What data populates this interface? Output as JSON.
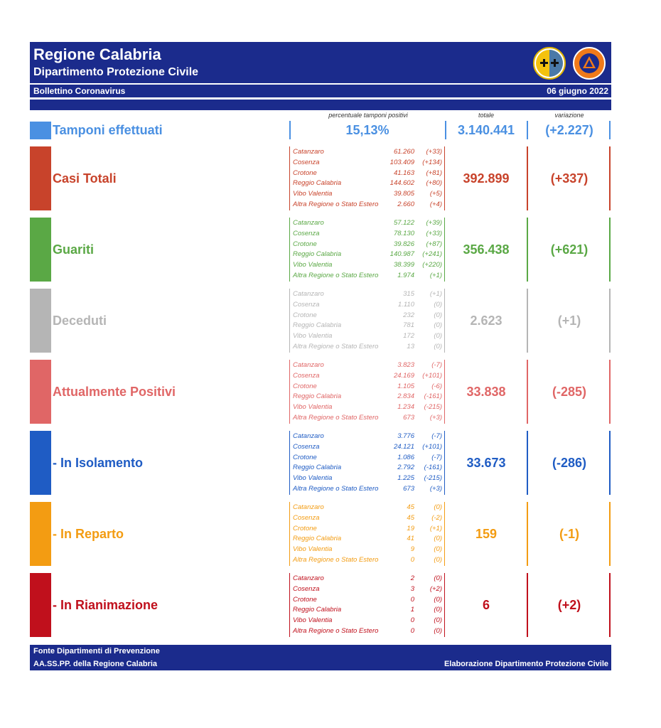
{
  "header": {
    "title": "Regione Calabria",
    "subtitle": "Dipartimento Protezione Civile",
    "bulletin": "Bollettino Coronavirus",
    "date": "06 giugno 2022"
  },
  "columns": {
    "percent": "percentuale tamponi positivi",
    "total": "totale",
    "variation": "variazione"
  },
  "tamponi": {
    "label": "Tamponi effettuati",
    "percent": "15,13%",
    "total": "3.140.441",
    "variation": "(+2.227)",
    "color": "#4a90e2"
  },
  "sections": [
    {
      "label": "Casi Totali",
      "color": "#c8432b",
      "total": "392.899",
      "variation": "(+337)",
      "rows": [
        {
          "name": "Catanzaro",
          "value": "61.260",
          "var": "(+33)"
        },
        {
          "name": "Cosenza",
          "value": "103.409",
          "var": "(+134)"
        },
        {
          "name": "Crotone",
          "value": "41.163",
          "var": "(+81)"
        },
        {
          "name": "Reggio Calabria",
          "value": "144.602",
          "var": "(+80)"
        },
        {
          "name": "Vibo Valentia",
          "value": "39.805",
          "var": "(+5)"
        },
        {
          "name": "Altra Regione o Stato Estero",
          "value": "2.660",
          "var": "(+4)"
        }
      ]
    },
    {
      "label": "Guariti",
      "color": "#5aa845",
      "total": "356.438",
      "variation": "(+621)",
      "rows": [
        {
          "name": "Catanzaro",
          "value": "57.122",
          "var": "(+39)"
        },
        {
          "name": "Cosenza",
          "value": "78.130",
          "var": "(+33)"
        },
        {
          "name": "Crotone",
          "value": "39.826",
          "var": "(+87)"
        },
        {
          "name": "Reggio Calabria",
          "value": "140.987",
          "var": "(+241)"
        },
        {
          "name": "Vibo Valentia",
          "value": "38.399",
          "var": "(+220)"
        },
        {
          "name": "Altra Regione o Stato Estero",
          "value": "1.974",
          "var": "(+1)"
        }
      ]
    },
    {
      "label": "Deceduti",
      "color": "#b5b5b5",
      "total": "2.623",
      "variation": "(+1)",
      "rows": [
        {
          "name": "Catanzaro",
          "value": "315",
          "var": "(+1)"
        },
        {
          "name": "Cosenza",
          "value": "1.110",
          "var": "(0)"
        },
        {
          "name": "Crotone",
          "value": "232",
          "var": "(0)"
        },
        {
          "name": "Reggio Calabria",
          "value": "781",
          "var": "(0)"
        },
        {
          "name": "Vibo Valentia",
          "value": "172",
          "var": "(0)"
        },
        {
          "name": "Altra Regione o Stato Estero",
          "value": "13",
          "var": "(0)"
        }
      ]
    },
    {
      "label": "Attualmente Positivi",
      "color": "#e06666",
      "total": "33.838",
      "variation": "(-285)",
      "rows": [
        {
          "name": "Catanzaro",
          "value": "3.823",
          "var": "(-7)"
        },
        {
          "name": "Cosenza",
          "value": "24.169",
          "var": "(+101)"
        },
        {
          "name": "Crotone",
          "value": "1.105",
          "var": "(-6)"
        },
        {
          "name": "Reggio Calabria",
          "value": "2.834",
          "var": "(-161)"
        },
        {
          "name": "Vibo Valentia",
          "value": "1.234",
          "var": "(-215)"
        },
        {
          "name": "Altra Regione o Stato Estero",
          "value": "673",
          "var": "(+3)"
        }
      ]
    },
    {
      "label": "- In Isolamento",
      "color": "#1f5cc4",
      "total": "33.673",
      "variation": "(-286)",
      "rows": [
        {
          "name": "Catanzaro",
          "value": "3.776",
          "var": "(-7)"
        },
        {
          "name": "Cosenza",
          "value": "24.121",
          "var": "(+101)"
        },
        {
          "name": "Crotone",
          "value": "1.086",
          "var": "(-7)"
        },
        {
          "name": "Reggio Calabria",
          "value": "2.792",
          "var": "(-161)"
        },
        {
          "name": "Vibo Valentia",
          "value": "1.225",
          "var": "(-215)"
        },
        {
          "name": "Altra Regione o Stato Estero",
          "value": "673",
          "var": "(+3)"
        }
      ]
    },
    {
      "label": "- In Reparto",
      "color": "#f39c12",
      "total": "159",
      "variation": "(-1)",
      "rows": [
        {
          "name": "Catanzaro",
          "value": "45",
          "var": "(0)"
        },
        {
          "name": "Cosenza",
          "value": "45",
          "var": "(-2)"
        },
        {
          "name": "Crotone",
          "value": "19",
          "var": "(+1)"
        },
        {
          "name": "Reggio Calabria",
          "value": "41",
          "var": "(0)"
        },
        {
          "name": "Vibo Valentia",
          "value": "9",
          "var": "(0)"
        },
        {
          "name": "Altra Regione o Stato Estero",
          "value": "0",
          "var": "(0)"
        }
      ]
    },
    {
      "label": "- In Rianimazione",
      "color": "#c0101c",
      "total": "6",
      "variation": "(+2)",
      "rows": [
        {
          "name": "Catanzaro",
          "value": "2",
          "var": "(0)"
        },
        {
          "name": "Cosenza",
          "value": "3",
          "var": "(+2)"
        },
        {
          "name": "Crotone",
          "value": "0",
          "var": "(0)"
        },
        {
          "name": "Reggio Calabria",
          "value": "1",
          "var": "(0)"
        },
        {
          "name": "Vibo Valentia",
          "value": "0",
          "var": "(0)"
        },
        {
          "name": "Altra Regione o Stato Estero",
          "value": "0",
          "var": "(0)"
        }
      ]
    }
  ],
  "footer": {
    "source_line1": "Fonte Dipartimenti di Prevenzione",
    "source_line2": "AA.SS.PP.  della Regione Calabria",
    "credit": "Elaborazione Dipartimento Protezione Civile"
  },
  "logos": [
    "regione-calabria-seal",
    "protezione-civile-emblem"
  ]
}
